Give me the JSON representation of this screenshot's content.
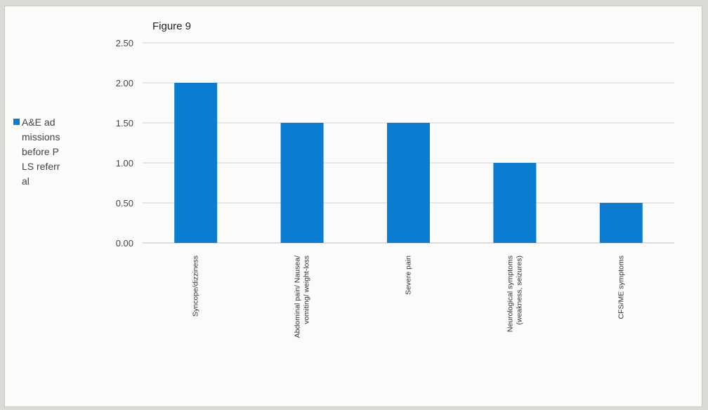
{
  "chart_data": {
    "type": "bar",
    "title": "Figure 9",
    "categories": [
      "Syncope/dizziness",
      "Abdominal pain/ Nausea/ vomiting/ weight-loss",
      "Severe pain",
      "Neurological symptoms (weakness, seizures)",
      "CFS/ME symptoms"
    ],
    "category_lines": [
      [
        "Syncope/dizziness"
      ],
      [
        "Abdominal pain/ Nausea/",
        "vomiting/ weight-loss"
      ],
      [
        "Severe pain"
      ],
      [
        "Neurological symptoms",
        "(weakness, seizures)"
      ],
      [
        "CFS/ME symptoms"
      ]
    ],
    "series": [
      {
        "name": "A&E admissions before PLS referral",
        "values": [
          2.0,
          1.5,
          1.5,
          1.0,
          0.5
        ],
        "color": "#0a7dd1"
      }
    ],
    "y_ticks": [
      "0.00",
      "0.50",
      "1.00",
      "1.50",
      "2.00",
      "2.50"
    ],
    "ylim": [
      0,
      2.5
    ],
    "grid": true,
    "legend_position": "left"
  }
}
